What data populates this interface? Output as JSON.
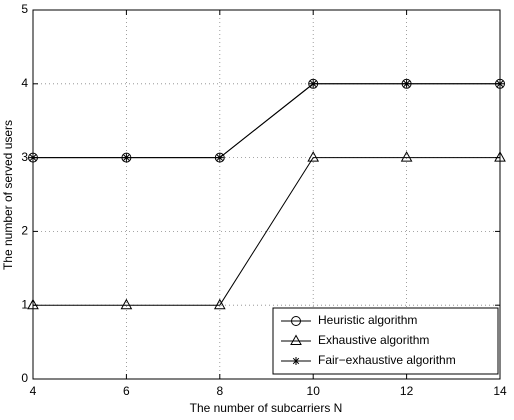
{
  "chart_data": {
    "type": "line",
    "x": [
      4,
      6,
      8,
      10,
      12,
      14
    ],
    "series": [
      {
        "name": "Heuristic algorithm",
        "color": "#000000",
        "marker": "circle",
        "values": [
          3,
          3,
          3,
          4,
          4,
          4
        ]
      },
      {
        "name": "Exhaustive algorithm",
        "color": "#000000",
        "marker": "triangle",
        "values": [
          1,
          1,
          1,
          3,
          3,
          3
        ]
      },
      {
        "name": "Fair−exhaustive algorithm",
        "color": "#000000",
        "marker": "star",
        "values": [
          3,
          3,
          3,
          4,
          4,
          4
        ]
      }
    ],
    "xlabel": "The number of subcarriers N",
    "ylabel": "The number of served users",
    "xlim": [
      4,
      14
    ],
    "xticks": [
      4,
      6,
      8,
      10,
      12,
      14
    ],
    "ylim": [
      0,
      5
    ],
    "yticks": [
      0,
      1,
      2,
      3,
      4,
      5
    ],
    "grid": true,
    "legend_position": "lower right"
  }
}
